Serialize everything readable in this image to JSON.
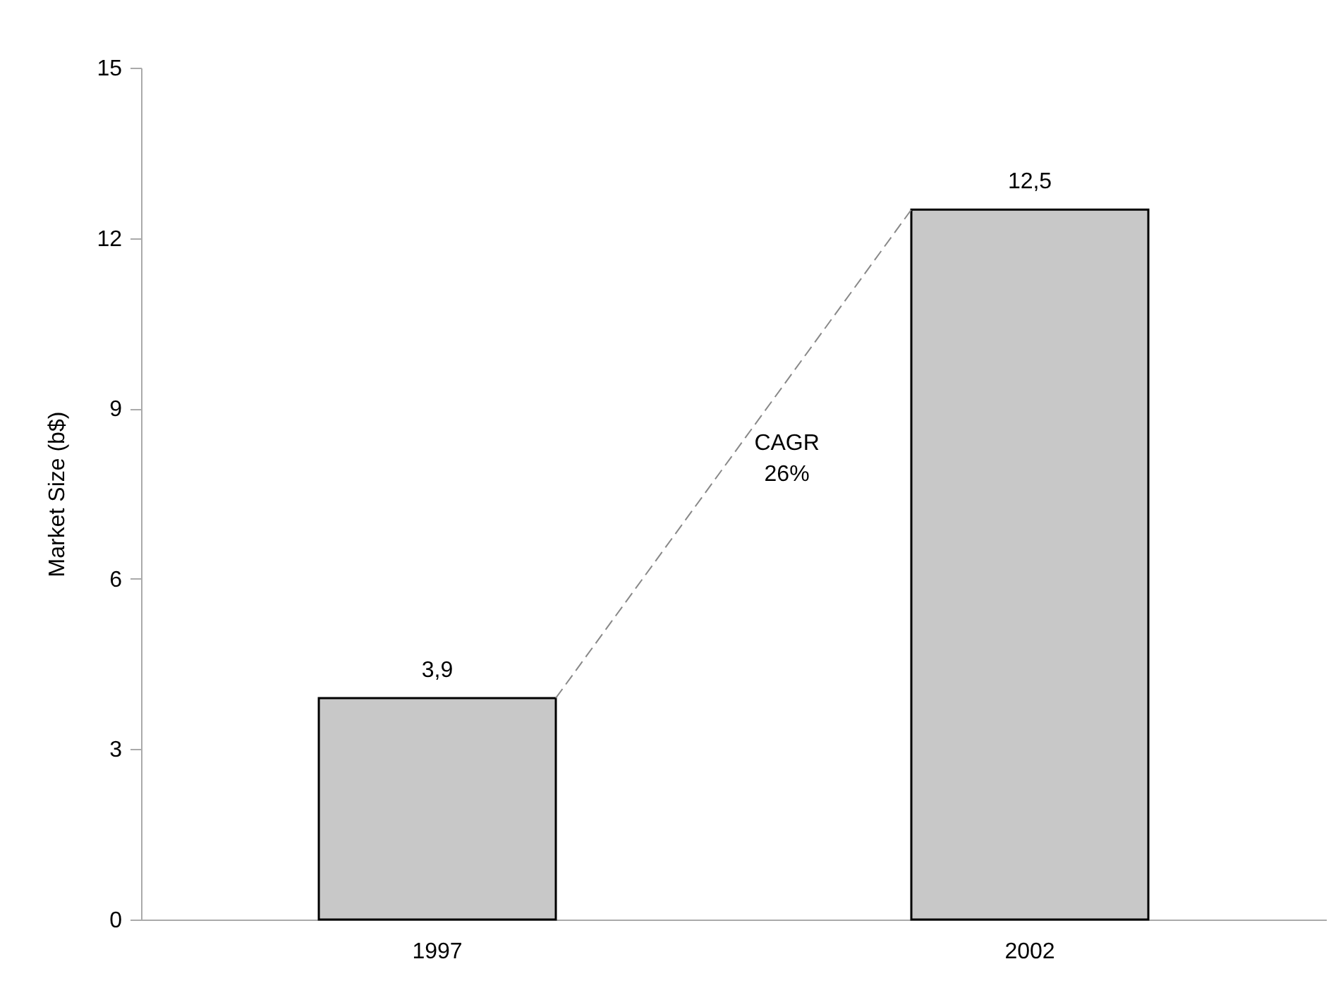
{
  "chart_data": {
    "type": "bar",
    "ylabel": "Market Size (b$)",
    "categories": [
      "1997",
      "2002"
    ],
    "values": [
      3.9,
      12.5
    ],
    "value_labels": [
      "3,9",
      "12,5"
    ],
    "color": "#c8c8c8",
    "ylim": [
      0,
      15
    ],
    "yticks": [
      0,
      3,
      6,
      9,
      12,
      15
    ],
    "grid": false,
    "annotations": [
      "CAGR\n26%"
    ]
  }
}
